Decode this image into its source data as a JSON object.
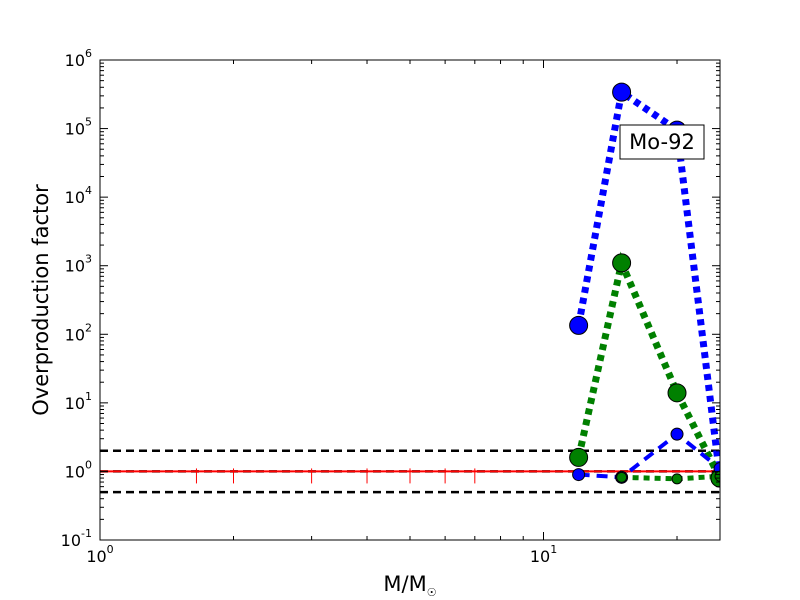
{
  "chart_data": {
    "type": "line",
    "title": "",
    "xlabel": "M/M",
    "xlabel_symbol": "☉",
    "ylabel": "Overproduction factor",
    "x_scale": "log",
    "y_scale": "log",
    "xlim": [
      1,
      25
    ],
    "ylim": [
      0.1,
      1000000
    ],
    "x_ticks": [
      {
        "value": 1,
        "base": "10",
        "exp": "0"
      },
      {
        "value": 10,
        "base": "10",
        "exp": "1"
      }
    ],
    "y_ticks": [
      {
        "value": 0.1,
        "base": "10",
        "exp": "-1"
      },
      {
        "value": 1,
        "base": "10",
        "exp": "0"
      },
      {
        "value": 10,
        "base": "10",
        "exp": "1"
      },
      {
        "value": 100,
        "base": "10",
        "exp": "2"
      },
      {
        "value": 1000,
        "base": "10",
        "exp": "3"
      },
      {
        "value": 10000,
        "base": "10",
        "exp": "4"
      },
      {
        "value": 100000,
        "base": "10",
        "exp": "5"
      },
      {
        "value": 1000000,
        "base": "10",
        "exp": "6"
      }
    ],
    "grid": false,
    "annotation": "Mo-92",
    "reference_lines": [
      {
        "y": 2.0,
        "color": "#000000",
        "style": "dashed"
      },
      {
        "y": 1.0,
        "color": "#000000",
        "style": "dashed"
      },
      {
        "y": 0.5,
        "color": "#000000",
        "style": "dashed"
      },
      {
        "y": 1.0,
        "color": "#ff0000",
        "style": "solid"
      }
    ],
    "red_tick_x": [
      1.65,
      2.0,
      3.0,
      4.0,
      5.0,
      6.0,
      7.0
    ],
    "series": [
      {
        "color": "#0000ff",
        "style": "dotted",
        "marker_size": "large",
        "x": [
          12,
          15,
          20,
          25
        ],
        "y": [
          135,
          340000,
          95000,
          0.8
        ]
      },
      {
        "color": "#008000",
        "style": "dotted",
        "marker_size": "large",
        "x": [
          12,
          15,
          20,
          25
        ],
        "y": [
          1.6,
          1100,
          14,
          0.8
        ]
      },
      {
        "color": "#0000ff",
        "style": "dashed",
        "marker_size": "small",
        "x": [
          12,
          15,
          20,
          25
        ],
        "y": [
          0.9,
          0.82,
          3.5,
          1.1
        ]
      },
      {
        "color": "#008000",
        "style": "dotted",
        "marker_size": "small",
        "x": [
          15,
          20,
          25
        ],
        "y": [
          0.82,
          0.78,
          0.85
        ]
      }
    ]
  }
}
